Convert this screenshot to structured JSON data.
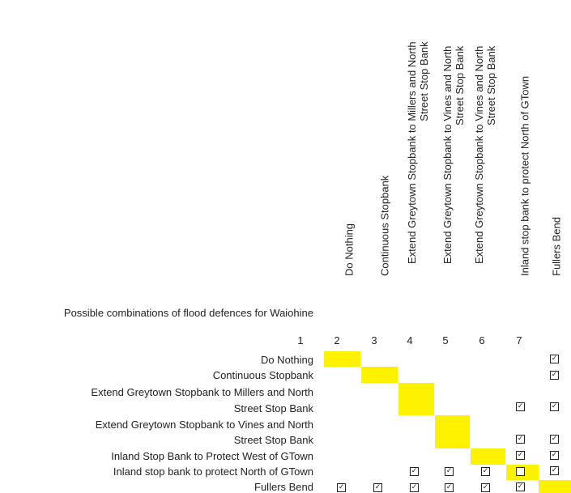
{
  "title": "Possible combinations of flood defences for Waiohine",
  "columns": [
    {
      "num": "1",
      "label": "Do Nothing"
    },
    {
      "num": "2",
      "label": "Continuous Stopbank"
    },
    {
      "num": "3",
      "label": "Extend Greytown Stopbank to Millers and North\nStreet Stop Bank"
    },
    {
      "num": "4",
      "label": "Extend Greytown Stopbank to Vines and North\nStreet Stop Bank"
    },
    {
      "num": "5",
      "label": "Extend Greytown Stopbank to Vines and North\nStreet Stop Bank"
    },
    {
      "num": "6",
      "label": "Inland stop bank to protect North of GTown"
    },
    {
      "num": "7",
      "label": "Fullers Bend"
    }
  ],
  "rows": [
    {
      "label": "Do Nothing"
    },
    {
      "label": "Continuous Stopbank"
    },
    {
      "label": "Extend Greytown Stopbank to Millers and North"
    },
    {
      "label": "Street Stop Bank"
    },
    {
      "label": "Extend Greytown Stopbank to Vines and North"
    },
    {
      "label": "Street Stop Bank"
    },
    {
      "label": "Inland  Stop Bank to Protect West of GTown"
    },
    {
      "label": "Inland stop bank to protect North of  GTown"
    },
    {
      "label": "Fullers Bend"
    }
  ]
}
